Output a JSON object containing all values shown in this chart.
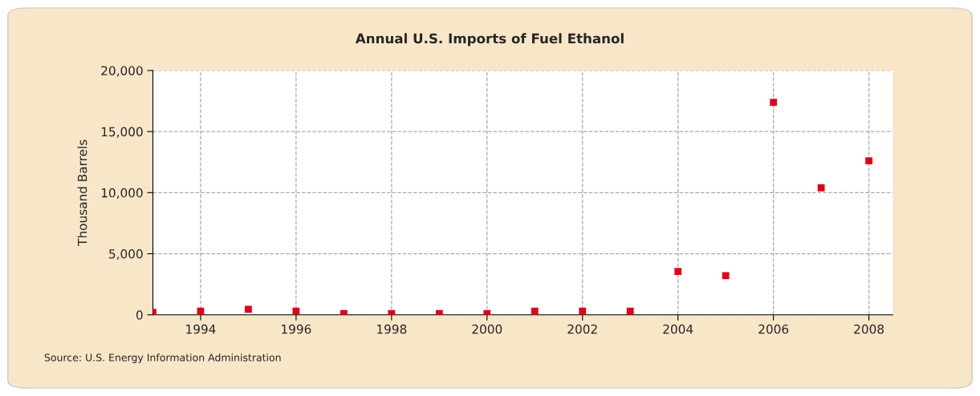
{
  "chart_data": {
    "type": "scatter",
    "title": "Annual U.S. Imports of Fuel Ethanol",
    "ylabel": "Thousand Barrels",
    "x": [
      1993,
      1994,
      1995,
      1996,
      1997,
      1998,
      1999,
      2000,
      2001,
      2002,
      2003,
      2004,
      2005,
      2006,
      2007,
      2008
    ],
    "series": [
      {
        "color": "#e2001a",
        "values": [
          200,
          300,
          450,
          300,
          100,
          100,
          100,
          100,
          300,
          300,
          300,
          3550,
          3200,
          17400,
          10400,
          12600
        ]
      }
    ],
    "xlim": [
      1993,
      2008.5
    ],
    "xticks": [
      1994,
      1996,
      1998,
      2000,
      2002,
      2004,
      2006,
      2008
    ],
    "ylim": [
      0,
      20000
    ],
    "yticks": [
      {
        "value": 0,
        "label": "0"
      },
      {
        "value": 5000,
        "label": "5,000"
      },
      {
        "value": 10000,
        "label": "10,000"
      },
      {
        "value": 15000,
        "label": "15,000"
      },
      {
        "value": 20000,
        "label": "20,000"
      }
    ],
    "grid": true,
    "marker": "square",
    "legend": false,
    "annotations": [
      "Source: U.S. Energy Information Administration"
    ]
  }
}
